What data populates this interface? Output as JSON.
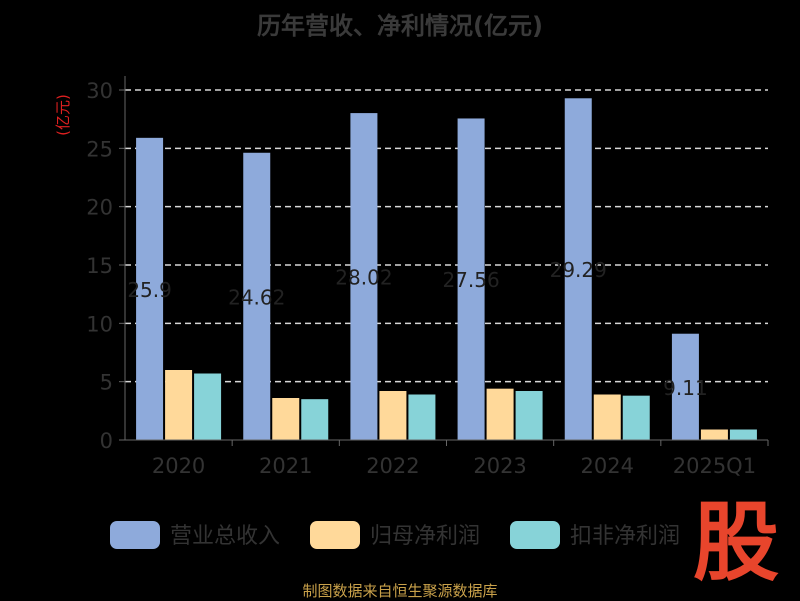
{
  "chart_data": {
    "type": "bar",
    "title": "历年营收、净利情况(亿元)",
    "ylabel": "(亿元)",
    "xlabel": "",
    "ylim": [
      0,
      30
    ],
    "yticks": [
      0,
      5,
      10,
      15,
      20,
      25,
      30
    ],
    "grid": true,
    "legend_position": "bottom",
    "categories": [
      "2020",
      "2021",
      "2022",
      "2023",
      "2024",
      "2025Q1"
    ],
    "series": [
      {
        "name": "营业总收入",
        "color": "#8eaadb",
        "values": [
          25.9,
          24.62,
          28.02,
          27.56,
          29.29,
          9.11
        ]
      },
      {
        "name": "归母净利润",
        "color": "#ffd99a",
        "values": [
          6.0,
          3.6,
          4.2,
          4.4,
          3.9,
          0.9
        ]
      },
      {
        "name": "扣非净利润",
        "color": "#87d3d8",
        "values": [
          5.7,
          3.5,
          3.9,
          4.2,
          3.8,
          0.9
        ]
      }
    ],
    "data_labels": [
      "25.9",
      "24.62",
      "28.02",
      "27.56",
      "29.29",
      "9.11"
    ]
  },
  "logo_text": "股",
  "credit": "制图数据来自恒生聚源数据库"
}
